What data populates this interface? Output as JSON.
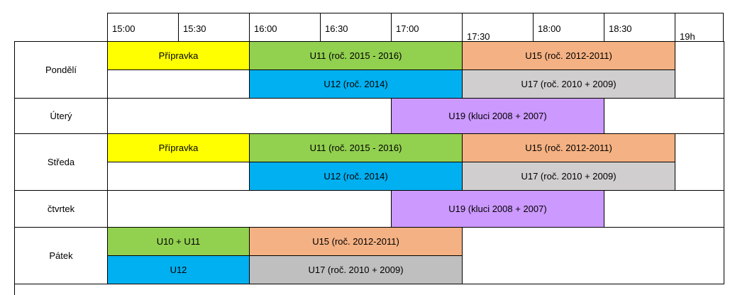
{
  "header": {
    "times": [
      "15:00",
      "15:30",
      "16:00",
      "16:30",
      "17:00",
      "17:30",
      "18:00",
      "18:30",
      "19h"
    ]
  },
  "days": [
    {
      "name": "Pondělí",
      "lines": [
        [
          {
            "label": "Přípravka",
            "color": "#ffff00"
          },
          {
            "label": "U11 (roč. 2015 - 2016)",
            "color": "#92d050"
          },
          {
            "label": "U15 (roč. 2012-2011)",
            "color": "#f4b183"
          }
        ],
        [
          {
            "label": "U12 (roč. 2014)",
            "color": "#00b0f0"
          },
          {
            "label": "U17 (roč. 2010 + 2009)",
            "color": "#d0cece"
          }
        ]
      ]
    },
    {
      "name": "Úterý",
      "lines": [
        [
          {
            "label": "U19 (kluci 2008 + 2007)",
            "color": "#cc99ff"
          }
        ]
      ]
    },
    {
      "name": "Středa",
      "lines": [
        [
          {
            "label": "Přípravka",
            "color": "#ffff00"
          },
          {
            "label": "U11 (roč. 2015 - 2016)",
            "color": "#92d050"
          },
          {
            "label": "U15 (roč. 2012-2011)",
            "color": "#f4b183"
          }
        ],
        [
          {
            "label": "U12 (roč. 2014)",
            "color": "#00b0f0"
          },
          {
            "label": "U17 (roč. 2010 + 2009)",
            "color": "#d0cece"
          }
        ]
      ]
    },
    {
      "name": "čtvrtek",
      "lines": [
        [
          {
            "label": "U19 (kluci 2008 + 2007)",
            "color": "#cc99ff"
          }
        ]
      ]
    },
    {
      "name": "Pátek",
      "lines": [
        [
          {
            "label": "U10 + U11",
            "color": "#92d050"
          },
          {
            "label": "U15 (roč. 2012-2011)",
            "color": "#f4b183"
          }
        ],
        [
          {
            "label": "U12",
            "color": "#00b0f0"
          },
          {
            "label": "U17 (roč. 2010 + 2009)",
            "color": "#bfbfbf"
          }
        ]
      ]
    }
  ]
}
